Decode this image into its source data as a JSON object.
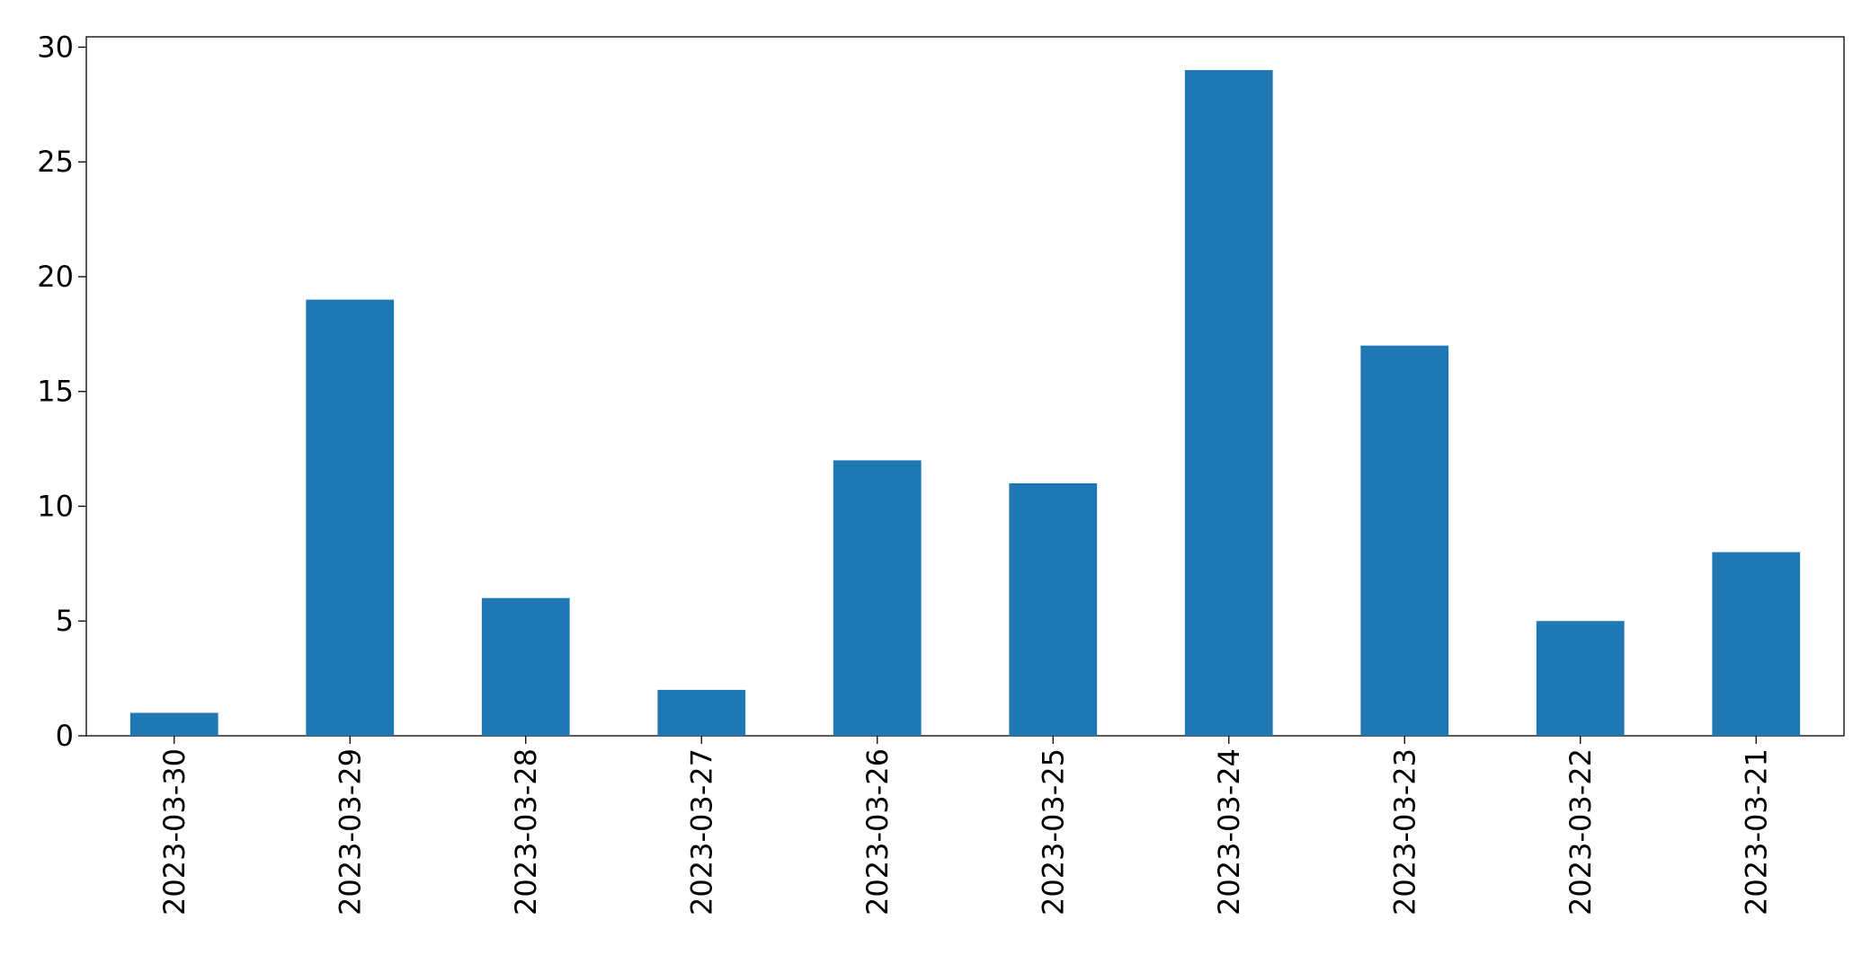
{
  "chart_data": {
    "type": "bar",
    "categories": [
      "2023-03-30",
      "2023-03-29",
      "2023-03-28",
      "2023-03-27",
      "2023-03-26",
      "2023-03-25",
      "2023-03-24",
      "2023-03-23",
      "2023-03-22",
      "2023-03-21"
    ],
    "values": [
      1,
      19,
      6,
      2,
      12,
      11,
      29,
      17,
      5,
      8
    ],
    "color": "#1f77b4",
    "ylim": [
      0,
      30.45
    ],
    "yticks": [
      0,
      5,
      10,
      15,
      20,
      25,
      30
    ],
    "grid": false
  }
}
